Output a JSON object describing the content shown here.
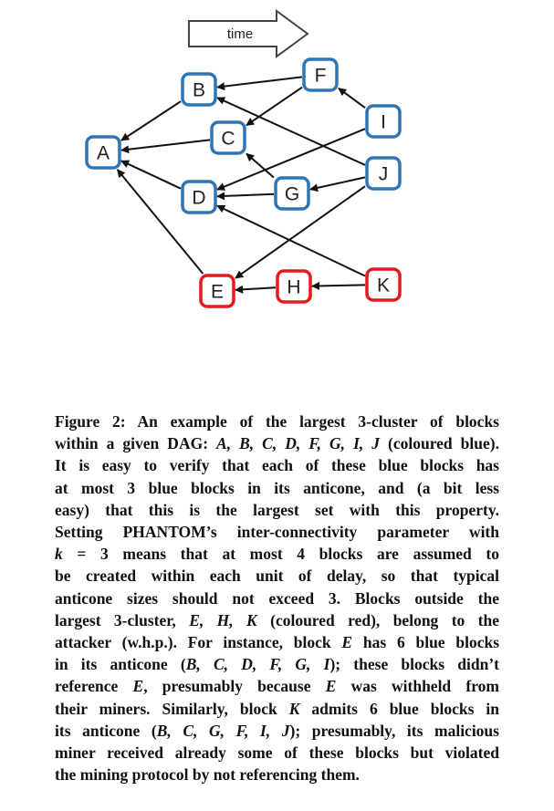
{
  "diagram": {
    "time_label": "time",
    "nodes": [
      {
        "id": "A",
        "label": "A",
        "color": "blue"
      },
      {
        "id": "B",
        "label": "B",
        "color": "blue"
      },
      {
        "id": "C",
        "label": "C",
        "color": "blue"
      },
      {
        "id": "D",
        "label": "D",
        "color": "blue"
      },
      {
        "id": "E",
        "label": "E",
        "color": "red"
      },
      {
        "id": "F",
        "label": "F",
        "color": "blue"
      },
      {
        "id": "G",
        "label": "G",
        "color": "blue"
      },
      {
        "id": "H",
        "label": "H",
        "color": "red"
      },
      {
        "id": "I",
        "label": "I",
        "color": "blue"
      },
      {
        "id": "J",
        "label": "J",
        "color": "blue"
      },
      {
        "id": "K",
        "label": "K",
        "color": "red"
      }
    ],
    "edges": [
      {
        "from": "B",
        "to": "A"
      },
      {
        "from": "C",
        "to": "A"
      },
      {
        "from": "D",
        "to": "A"
      },
      {
        "from": "E",
        "to": "A"
      },
      {
        "from": "F",
        "to": "B"
      },
      {
        "from": "F",
        "to": "C"
      },
      {
        "from": "G",
        "to": "D"
      },
      {
        "from": "G",
        "to": "C"
      },
      {
        "from": "I",
        "to": "F"
      },
      {
        "from": "I",
        "to": "D"
      },
      {
        "from": "J",
        "to": "B"
      },
      {
        "from": "J",
        "to": "G"
      },
      {
        "from": "J",
        "to": "E"
      },
      {
        "from": "H",
        "to": "E"
      },
      {
        "from": "K",
        "to": "H"
      },
      {
        "from": "K",
        "to": "D"
      }
    ],
    "colors": {
      "blue": "#2e75b6",
      "red": "#e8191b"
    }
  },
  "caption": {
    "lines": [
      [
        {
          "t": "Figure 2: An example of the largest 3-cluster of blocks"
        }
      ],
      [
        {
          "t": "within a given DAG: "
        },
        {
          "t": "A, B, C, D, F, G, I, J",
          "i": true
        },
        {
          "t": " (coloured blue)."
        }
      ],
      [
        {
          "t": "It is easy to verify that each of these blue blocks has"
        }
      ],
      [
        {
          "t": "at most 3 blue blocks in its anticone, and (a bit less"
        }
      ],
      [
        {
          "t": "easy) that this is the largest set with this property."
        }
      ],
      [
        {
          "t": "Setting PHANTOM’s inter-connectivity parameter with"
        }
      ],
      [
        {
          "t": "k",
          "i": true
        },
        {
          "t": " = 3 means that at most 4 blocks are assumed to"
        }
      ],
      [
        {
          "t": "be created within each unit of delay, so that typical"
        }
      ],
      [
        {
          "t": "anticone sizes should not exceed 3. Blocks outside the"
        }
      ],
      [
        {
          "t": "largest 3-cluster, "
        },
        {
          "t": "E, H, K",
          "i": true
        },
        {
          "t": " (coloured red), belong to the"
        }
      ],
      [
        {
          "t": "attacker (w.h.p.). For instance, block "
        },
        {
          "t": "E",
          "i": true
        },
        {
          "t": " has 6 blue blocks"
        }
      ],
      [
        {
          "t": "in its anticone ("
        },
        {
          "t": "B, C, D, F, G, I",
          "i": true
        },
        {
          "t": "); these blocks didn’t"
        }
      ],
      [
        {
          "t": "reference "
        },
        {
          "t": "E",
          "i": true
        },
        {
          "t": ", presumably because "
        },
        {
          "t": "E",
          "i": true
        },
        {
          "t": " was withheld from"
        }
      ],
      [
        {
          "t": "their miners. Similarly, block "
        },
        {
          "t": "K",
          "i": true
        },
        {
          "t": " admits 6 blue blocks in"
        }
      ],
      [
        {
          "t": "its anticone ("
        },
        {
          "t": "B, C, G, F, I, J",
          "i": true
        },
        {
          "t": "); presumably, its malicious"
        }
      ],
      [
        {
          "t": "miner received already some of these blocks but violated"
        }
      ],
      [
        {
          "t": "the mining protocol by not referencing them."
        }
      ]
    ]
  }
}
